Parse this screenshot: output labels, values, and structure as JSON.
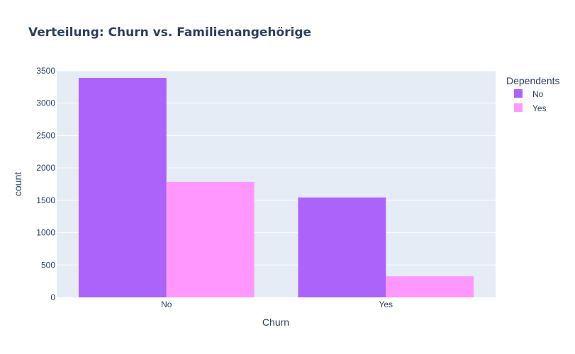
{
  "chart_data": {
    "type": "bar",
    "title": "Verteilung: Churn vs. Familienangehörige",
    "xlabel": "Churn",
    "ylabel": "count",
    "categories": [
      "No",
      "Yes"
    ],
    "series": [
      {
        "name": "No",
        "values": [
          3390,
          1543
        ],
        "color": "#ab63fa"
      },
      {
        "name": "Yes",
        "values": [
          1784,
          326
        ],
        "color": "#ff97ff"
      }
    ],
    "ylim": [
      0,
      3500
    ],
    "yticks": [
      0,
      500,
      1000,
      1500,
      2000,
      2500,
      3000,
      3500
    ],
    "legend": {
      "title": "Dependents",
      "placement": "top-right"
    },
    "grid": true,
    "plot_bg": "#e5ecf6"
  }
}
